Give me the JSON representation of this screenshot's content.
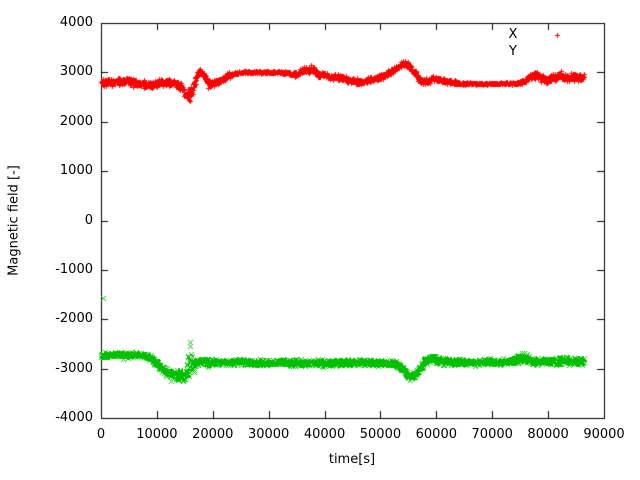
{
  "chart_data": {
    "type": "scatter",
    "title": "",
    "xlabel": "time[s]",
    "ylabel": "Magnetic field [-]",
    "xlim": [
      0,
      90000
    ],
    "ylim": [
      -4000,
      4000
    ],
    "grid": false,
    "background": "#ffffff",
    "axis_color": "#000000",
    "legend_position": "top-right-inside",
    "x_ticks": [
      0,
      10000,
      20000,
      30000,
      40000,
      50000,
      60000,
      70000,
      80000,
      90000
    ],
    "y_ticks": [
      -4000,
      -3000,
      -2000,
      -1000,
      0,
      1000,
      2000,
      3000,
      4000
    ],
    "legend": [
      {
        "label": "X",
        "marker": "plus",
        "color": "#ff0000",
        "marker_visible": true
      },
      {
        "label": "Y",
        "marker": "cross",
        "color": "#00c000",
        "marker_visible": false
      }
    ],
    "sample_step_s": 45,
    "series": [
      {
        "name": "X",
        "color": "#ff0000",
        "marker": "plus",
        "description": "midline control points [time_s, value, noise_spread]",
        "control_points": [
          [
            0,
            2810,
            90
          ],
          [
            2000,
            2800,
            90
          ],
          [
            4000,
            2830,
            90
          ],
          [
            6000,
            2810,
            80
          ],
          [
            7500,
            2760,
            90
          ],
          [
            9000,
            2740,
            90
          ],
          [
            10500,
            2800,
            80
          ],
          [
            12000,
            2790,
            80
          ],
          [
            13500,
            2760,
            80
          ],
          [
            14500,
            2700,
            100
          ],
          [
            15000,
            2560,
            150
          ],
          [
            15800,
            2520,
            150
          ],
          [
            16400,
            2650,
            130
          ],
          [
            17000,
            2900,
            100
          ],
          [
            17600,
            3040,
            80
          ],
          [
            18300,
            2960,
            80
          ],
          [
            19200,
            2790,
            80
          ],
          [
            20000,
            2770,
            80
          ],
          [
            21000,
            2820,
            70
          ],
          [
            22500,
            2910,
            60
          ],
          [
            24000,
            2980,
            40
          ],
          [
            25500,
            3005,
            25
          ],
          [
            28000,
            3010,
            25
          ],
          [
            31000,
            3005,
            25
          ],
          [
            33500,
            2990,
            40
          ],
          [
            34800,
            2960,
            60
          ],
          [
            36000,
            3040,
            70
          ],
          [
            37000,
            3060,
            80
          ],
          [
            38000,
            3050,
            80
          ],
          [
            39000,
            2950,
            70
          ],
          [
            40000,
            2970,
            70
          ],
          [
            41000,
            2890,
            70
          ],
          [
            42000,
            2920,
            70
          ],
          [
            43500,
            2860,
            70
          ],
          [
            45000,
            2830,
            70
          ],
          [
            46500,
            2800,
            70
          ],
          [
            48000,
            2840,
            70
          ],
          [
            49500,
            2890,
            70
          ],
          [
            51000,
            2960,
            70
          ],
          [
            52500,
            3060,
            70
          ],
          [
            54000,
            3180,
            70
          ],
          [
            54800,
            3150,
            80
          ],
          [
            55800,
            3040,
            80
          ],
          [
            56800,
            2890,
            80
          ],
          [
            57500,
            2810,
            70
          ],
          [
            58500,
            2840,
            70
          ],
          [
            59500,
            2880,
            70
          ],
          [
            60500,
            2850,
            70
          ],
          [
            61500,
            2820,
            60
          ],
          [
            63000,
            2790,
            50
          ],
          [
            64500,
            2780,
            35
          ],
          [
            66000,
            2775,
            25
          ],
          [
            69000,
            2775,
            25
          ],
          [
            72000,
            2775,
            25
          ],
          [
            74500,
            2780,
            35
          ],
          [
            76000,
            2840,
            80
          ],
          [
            77000,
            2930,
            90
          ],
          [
            77800,
            2950,
            90
          ],
          [
            78700,
            2890,
            90
          ],
          [
            79800,
            2850,
            90
          ],
          [
            81000,
            2880,
            100
          ],
          [
            82200,
            2930,
            100
          ],
          [
            83400,
            2890,
            100
          ],
          [
            84600,
            2920,
            100
          ],
          [
            85500,
            2890,
            100
          ],
          [
            86400,
            2900,
            90
          ]
        ],
        "outliers": []
      },
      {
        "name": "Y",
        "color": "#00c000",
        "marker": "cross",
        "description": "midline control points [time_s, value, noise_spread]",
        "control_points": [
          [
            0,
            -2720,
            60
          ],
          [
            2000,
            -2710,
            60
          ],
          [
            4000,
            -2715,
            60
          ],
          [
            6000,
            -2720,
            60
          ],
          [
            8000,
            -2740,
            60
          ],
          [
            9200,
            -2800,
            70
          ],
          [
            10200,
            -2930,
            80
          ],
          [
            11200,
            -3040,
            90
          ],
          [
            12200,
            -3100,
            100
          ],
          [
            13200,
            -3140,
            110
          ],
          [
            14200,
            -3090,
            110
          ],
          [
            15000,
            -3150,
            110
          ],
          [
            15600,
            -2850,
            380
          ],
          [
            16100,
            -2780,
            380
          ],
          [
            16600,
            -2950,
            200
          ],
          [
            17200,
            -2870,
            90
          ],
          [
            18000,
            -2860,
            80
          ],
          [
            20000,
            -2855,
            70
          ],
          [
            23000,
            -2865,
            70
          ],
          [
            26000,
            -2860,
            70
          ],
          [
            29000,
            -2875,
            70
          ],
          [
            32000,
            -2870,
            70
          ],
          [
            35000,
            -2880,
            75
          ],
          [
            38000,
            -2870,
            75
          ],
          [
            41000,
            -2880,
            75
          ],
          [
            44000,
            -2875,
            70
          ],
          [
            47000,
            -2870,
            70
          ],
          [
            50000,
            -2875,
            70
          ],
          [
            52500,
            -2890,
            70
          ],
          [
            53800,
            -2990,
            80
          ],
          [
            54800,
            -3120,
            80
          ],
          [
            55600,
            -3170,
            80
          ],
          [
            56600,
            -3060,
            80
          ],
          [
            57400,
            -2920,
            80
          ],
          [
            58200,
            -2830,
            90
          ],
          [
            59200,
            -2790,
            100
          ],
          [
            60200,
            -2820,
            100
          ],
          [
            61200,
            -2850,
            90
          ],
          [
            62500,
            -2860,
            75
          ],
          [
            65000,
            -2865,
            70
          ],
          [
            68000,
            -2860,
            70
          ],
          [
            71000,
            -2865,
            70
          ],
          [
            73500,
            -2855,
            70
          ],
          [
            75200,
            -2760,
            110
          ],
          [
            76200,
            -2790,
            110
          ],
          [
            77200,
            -2850,
            80
          ],
          [
            79000,
            -2845,
            75
          ],
          [
            81000,
            -2855,
            80
          ],
          [
            82500,
            -2840,
            90
          ],
          [
            84000,
            -2855,
            85
          ],
          [
            85500,
            -2845,
            80
          ],
          [
            86400,
            -2850,
            80
          ]
        ],
        "outliers": [
          [
            300,
            -1560
          ]
        ]
      }
    ]
  }
}
